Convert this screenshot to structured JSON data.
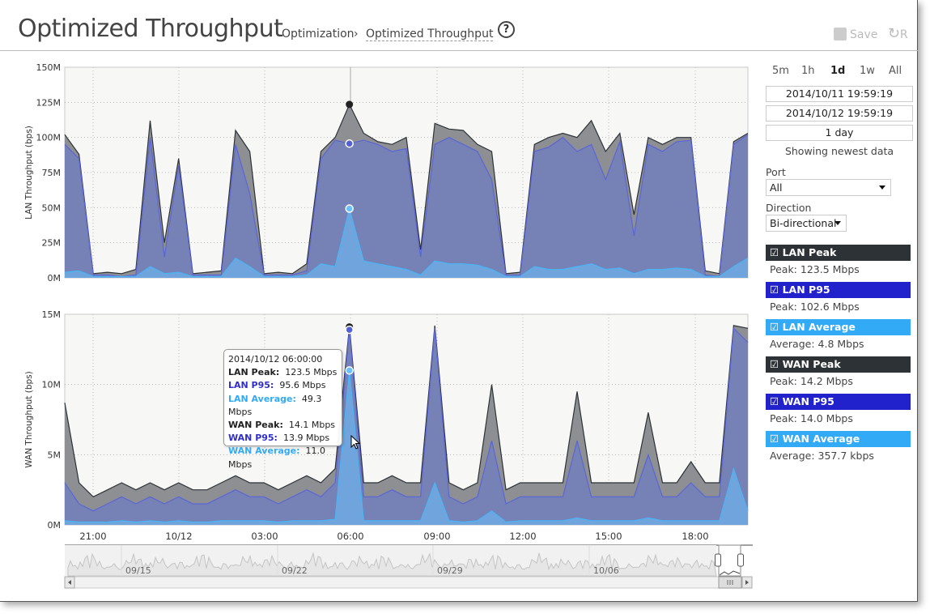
{
  "header": {
    "title": "Optimized Throughput",
    "breadcrumb": [
      "Optimization",
      "Optimized Throughput"
    ],
    "breadcrumb_sep": "›",
    "help": "?",
    "save_label": "Save",
    "revert_label": "R"
  },
  "controls": {
    "ranges": [
      {
        "label": "5m"
      },
      {
        "label": "1h"
      },
      {
        "label": "1d",
        "selected": true
      },
      {
        "label": "1w"
      },
      {
        "label": "All"
      }
    ],
    "start": "2014/10/11 19:59:19",
    "end": "2014/10/12 19:59:19",
    "duration": "1 day",
    "status": "Showing newest data",
    "port_label": "Port",
    "port_value": "All",
    "direction_label": "Direction",
    "direction_value": "Bi-directional"
  },
  "legend": [
    {
      "label": "LAN Peak",
      "stat": "Peak: 123.5 Mbps",
      "color": "#2d3236"
    },
    {
      "label": "LAN P95",
      "stat": "Peak: 102.6 Mbps",
      "color": "#2222cc"
    },
    {
      "label": "LAN Average",
      "stat": "Average: 4.8 Mbps",
      "color": "#33aaf5"
    },
    {
      "label": "WAN Peak",
      "stat": "Peak: 14.2 Mbps",
      "color": "#2d3236"
    },
    {
      "label": "WAN P95",
      "stat": "Peak: 14.0 Mbps",
      "color": "#2222cc"
    },
    {
      "label": "WAN Average",
      "stat": "Average: 357.7 kbps",
      "color": "#33aaf5"
    }
  ],
  "checkbox_icon": "☑",
  "tooltip": {
    "time": "2014/10/12 06:00:00",
    "rows": [
      {
        "label": "LAN Peak:",
        "value": "123.5 Mbps",
        "color": "#222"
      },
      {
        "label": "LAN P95:",
        "value": "95.6 Mbps",
        "color": "#3030c8"
      },
      {
        "label": "LAN Average:",
        "value": "49.3 Mbps",
        "color": "#33aaf5"
      },
      {
        "label": "WAN Peak:",
        "value": "14.1 Mbps",
        "color": "#222"
      },
      {
        "label": "WAN P95:",
        "value": "13.9 Mbps",
        "color": "#3030c8"
      },
      {
        "label": "WAN Average:",
        "value": "11.0 Mbps",
        "color": "#33aaf5"
      }
    ]
  },
  "navigator": {
    "labels": [
      "09/15",
      "09/22",
      "09/29",
      "10/06"
    ]
  },
  "chart_data": [
    {
      "type": "area",
      "ylabel": "LAN Throughput (bps)",
      "ylim": [
        0,
        150
      ],
      "yticks": [
        "0M",
        "25M",
        "50M",
        "75M",
        "100M",
        "125M",
        "150M"
      ],
      "xticks": [
        "21:00",
        "10/12",
        "03:00",
        "06:00",
        "09:00",
        "12:00",
        "15:00",
        "18:00"
      ],
      "x_start": "2014/10/11 19:59",
      "x_end": "2014/10/12 19:59",
      "x_step_minutes": 30,
      "grid": true,
      "highlight_index": 20,
      "series": [
        {
          "name": "LAN Peak",
          "color": "#2d3236",
          "values": [
            102,
            88,
            3,
            4,
            3,
            6,
            112,
            25,
            85,
            3,
            4,
            5,
            105,
            90,
            3,
            4,
            3,
            10,
            90,
            100,
            123.5,
            103,
            97,
            95,
            100,
            20,
            110,
            106,
            105,
            95,
            90,
            3,
            4,
            95,
            100,
            103,
            100,
            112,
            90,
            103,
            45,
            100,
            95,
            100,
            100,
            5,
            3,
            97,
            103
          ]
        },
        {
          "name": "LAN P95",
          "color": "#2222cc",
          "values": [
            95,
            85,
            2,
            2,
            1,
            2,
            100,
            15,
            80,
            2,
            2,
            2,
            95,
            60,
            2,
            2,
            2,
            5,
            85,
            98,
            95.6,
            98,
            95,
            90,
            92,
            15,
            95,
            100,
            95,
            90,
            70,
            2,
            2,
            90,
            93,
            100,
            90,
            95,
            70,
            97,
            30,
            95,
            90,
            97,
            98,
            2,
            1,
            95,
            102
          ]
        },
        {
          "name": "LAN Average",
          "color": "#33aaf5",
          "values": [
            4,
            5,
            1,
            1,
            1,
            1,
            8,
            3,
            4,
            1,
            1,
            1,
            14,
            8,
            1,
            1,
            1,
            2,
            10,
            8,
            49.3,
            12,
            10,
            8,
            6,
            2,
            12,
            10,
            10,
            9,
            6,
            1,
            1,
            8,
            6,
            6,
            8,
            10,
            6,
            7,
            3,
            6,
            6,
            7,
            6,
            1,
            1,
            8,
            14
          ]
        }
      ]
    },
    {
      "type": "area",
      "ylabel": "WAN Throughput (bps)",
      "ylim": [
        0,
        15
      ],
      "yticks": [
        "0M",
        "5M",
        "10M",
        "15M"
      ],
      "xticks": [
        "21:00",
        "10/12",
        "03:00",
        "06:00",
        "09:00",
        "12:00",
        "15:00",
        "18:00"
      ],
      "x_start": "2014/10/11 19:59",
      "x_end": "2014/10/12 19:59",
      "x_step_minutes": 30,
      "grid": true,
      "highlight_index": 20,
      "series": [
        {
          "name": "WAN Peak",
          "color": "#2d3236",
          "values": [
            8.7,
            3,
            2,
            2.5,
            3,
            2.5,
            3,
            2.5,
            3,
            2.5,
            2.5,
            3,
            3.5,
            3,
            3,
            2.5,
            3,
            3.5,
            3,
            4,
            14.1,
            3,
            3,
            3.5,
            3,
            3,
            14.2,
            3,
            2.5,
            3,
            10,
            2.5,
            3,
            3,
            3,
            3,
            9.5,
            3,
            3,
            3,
            3,
            8,
            3,
            3,
            4.5,
            3,
            3,
            14.2,
            14
          ]
        },
        {
          "name": "WAN P95",
          "color": "#2222cc",
          "values": [
            3,
            1.5,
            1,
            1.5,
            2,
            1.5,
            2,
            1.5,
            2,
            1.5,
            1.5,
            2,
            2.5,
            2,
            2,
            1.5,
            2,
            2.5,
            2,
            3,
            13.9,
            2,
            2,
            2.5,
            2,
            2,
            14,
            2,
            1.5,
            2,
            6,
            1.5,
            2,
            2,
            2,
            2,
            6,
            2,
            2,
            2,
            2,
            5,
            2,
            2,
            3,
            2,
            2,
            14,
            13
          ]
        },
        {
          "name": "WAN Average",
          "color": "#33aaf5",
          "values": [
            0.3,
            0.2,
            0.2,
            0.2,
            0.3,
            0.2,
            0.3,
            0.2,
            0.3,
            0.2,
            0.2,
            0.3,
            0.3,
            0.3,
            0.3,
            0.2,
            0.3,
            0.3,
            0.3,
            0.4,
            11.0,
            0.3,
            0.3,
            0.3,
            0.3,
            0.3,
            3,
            0.3,
            0.2,
            0.3,
            1,
            0.2,
            0.3,
            0.3,
            0.3,
            0.3,
            0.5,
            0.3,
            0.3,
            0.3,
            0.3,
            0.5,
            0.3,
            0.3,
            0.3,
            0.3,
            0.3,
            4,
            1
          ]
        }
      ]
    }
  ]
}
